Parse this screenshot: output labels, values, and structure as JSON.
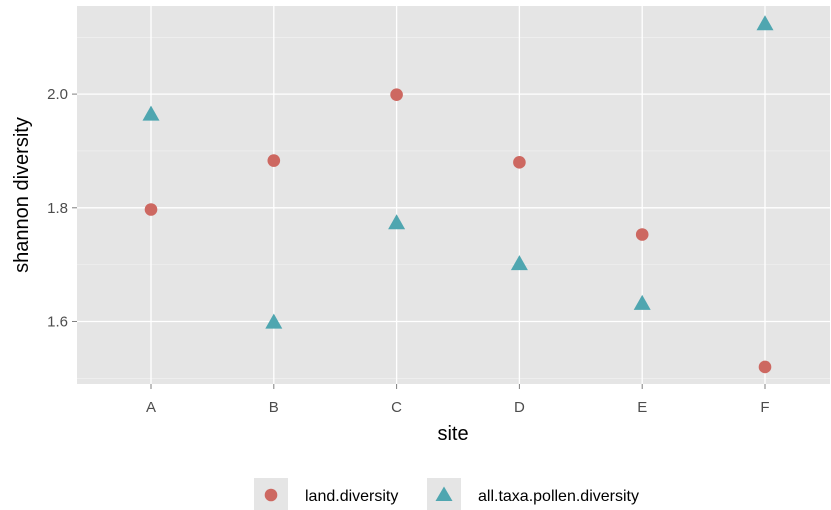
{
  "chart_data": {
    "type": "scatter",
    "categories": [
      "A",
      "B",
      "C",
      "D",
      "E",
      "F"
    ],
    "series": [
      {
        "name": "land.diversity",
        "shape": "circle",
        "color": "#cd6861",
        "values": [
          1.797,
          1.883,
          1.999,
          1.88,
          1.753,
          1.52
        ]
      },
      {
        "name": "all.taxa.pollen.diversity",
        "shape": "triangle",
        "color": "#4fa6b0",
        "values": [
          1.963,
          1.597,
          1.772,
          1.7,
          1.63,
          2.122
        ]
      }
    ],
    "xlabel": "site",
    "ylabel": "shannon diversity",
    "ylim": [
      1.49,
      2.155
    ],
    "yticks": [
      1.6,
      1.8,
      2.0
    ],
    "ytick_labels": [
      "1.6",
      "1.8",
      "2.0"
    ],
    "grid": true,
    "panel_color": "#e5e5e5",
    "grid_color": "#ffffff",
    "legend_position": "bottom"
  }
}
